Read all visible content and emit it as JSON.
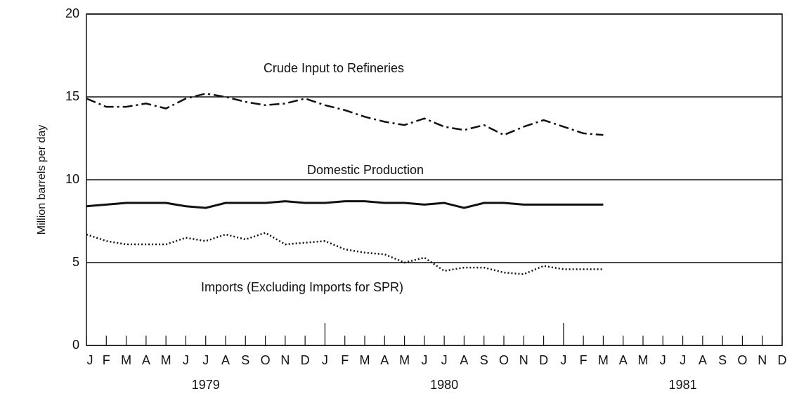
{
  "chart_data": {
    "type": "line",
    "ylabel": "Million barrels per day",
    "categories": [
      "J",
      "F",
      "M",
      "A",
      "M",
      "J",
      "J",
      "A",
      "S",
      "O",
      "N",
      "D",
      "J",
      "F",
      "M",
      "A",
      "M",
      "J",
      "J",
      "A",
      "S",
      "O",
      "N",
      "D",
      "J",
      "F",
      "M",
      "A",
      "M",
      "J",
      "J",
      "A",
      "S",
      "O",
      "N",
      "D"
    ],
    "year_labels": [
      "1979",
      "1980",
      "1981"
    ],
    "ylim": [
      0,
      20
    ],
    "yticks": [
      0,
      5,
      10,
      15,
      20
    ],
    "grid": true,
    "series": [
      {
        "name": "Crude Input to Refineries",
        "color": "#111111",
        "dash": "dashdot",
        "values": [
          14.9,
          14.4,
          14.4,
          14.6,
          14.3,
          14.9,
          15.2,
          15.0,
          14.7,
          14.5,
          14.6,
          14.9,
          14.5,
          14.2,
          13.8,
          13.5,
          13.3,
          13.7,
          13.2,
          13.0,
          13.3,
          12.7,
          13.2,
          13.6,
          13.2,
          12.8,
          12.7,
          null,
          null,
          null,
          null,
          null,
          null,
          null,
          null,
          null
        ]
      },
      {
        "name": "Domestic Production",
        "color": "#111111",
        "dash": "solid",
        "values": [
          8.4,
          8.5,
          8.6,
          8.6,
          8.6,
          8.4,
          8.3,
          8.6,
          8.6,
          8.6,
          8.7,
          8.6,
          8.6,
          8.7,
          8.7,
          8.6,
          8.6,
          8.5,
          8.6,
          8.3,
          8.6,
          8.6,
          8.5,
          8.5,
          8.5,
          8.5,
          8.5,
          null,
          null,
          null,
          null,
          null,
          null,
          null,
          null,
          null
        ]
      },
      {
        "name": "Imports (Excluding Imports for SPR)",
        "color": "#111111",
        "dash": "dotted",
        "values": [
          6.7,
          6.3,
          6.1,
          6.1,
          6.1,
          6.5,
          6.3,
          6.7,
          6.4,
          6.8,
          6.1,
          6.2,
          6.3,
          5.8,
          5.6,
          5.5,
          5.0,
          5.3,
          4.5,
          4.7,
          4.7,
          4.4,
          4.3,
          4.8,
          4.6,
          4.6,
          4.6,
          null,
          null,
          null,
          null,
          null,
          null,
          null,
          null,
          null
        ]
      }
    ]
  }
}
